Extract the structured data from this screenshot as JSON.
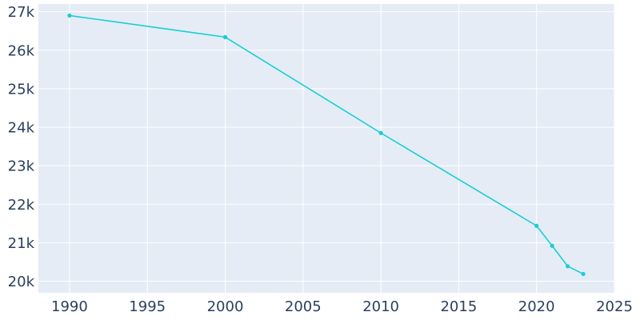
{
  "chart_data": {
    "type": "line",
    "title": "",
    "xlabel": "",
    "ylabel": "",
    "xlim": [
      1988,
      2025
    ],
    "ylim": [
      19700,
      27200
    ],
    "x_ticks": [
      1990,
      1995,
      2000,
      2005,
      2010,
      2015,
      2020,
      2025
    ],
    "x_tick_labels": [
      "1990",
      "1995",
      "2000",
      "2005",
      "2010",
      "2015",
      "2020",
      "2025"
    ],
    "y_ticks": [
      20000,
      21000,
      22000,
      23000,
      24000,
      25000,
      26000,
      27000
    ],
    "y_tick_labels": [
      "20k",
      "21k",
      "22k",
      "23k",
      "24k",
      "25k",
      "26k",
      "27k"
    ],
    "grid": true,
    "series": [
      {
        "color": "#17cfd2",
        "x": [
          1990,
          2000,
          2010,
          2020,
          2021,
          2022,
          2023
        ],
        "y": [
          26900,
          26340,
          23850,
          21440,
          20920,
          20390,
          20190
        ]
      }
    ],
    "colors": {
      "plot_background": "#e5ecf6",
      "grid": "#ffffff",
      "text": "#2a3f5f"
    }
  }
}
